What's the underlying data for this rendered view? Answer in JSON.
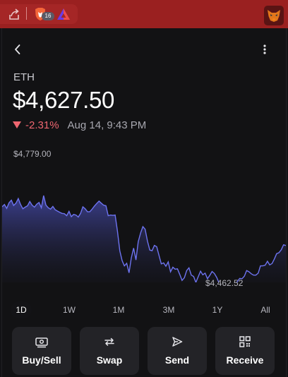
{
  "browser": {
    "extension_badge": "16"
  },
  "asset": {
    "symbol": "ETH",
    "price": "$4,627.50",
    "change_pct": "-2.31%",
    "timestamp": "Aug 14, 9:43 PM"
  },
  "chart_data": {
    "type": "area",
    "high_label": "$4,779.00",
    "low_label": "$4,462.52",
    "ylim": [
      4462.52,
      4779.0
    ],
    "line_color": "#6d73f0",
    "series": [
      {
        "values": [
          4745,
          4752,
          4740,
          4757,
          4765,
          4749,
          4756,
          4770,
          4752,
          4739,
          4744,
          4748,
          4761,
          4750,
          4744,
          4753,
          4758,
          4742,
          4779,
          4750,
          4742,
          4738,
          4746,
          4736,
          4732,
          4728,
          4725,
          4724,
          4718,
          4731,
          4715,
          4722,
          4720,
          4714,
          4725,
          4745,
          4739,
          4730,
          4730,
          4738,
          4747,
          4755,
          4762,
          4756,
          4750,
          4748,
          4718,
          4720,
          4719,
          4720,
          4671,
          4612,
          4582,
          4566,
          4574,
          4545,
          4590,
          4620,
          4584,
          4639,
          4665,
          4685,
          4677,
          4641,
          4614,
          4612,
          4628,
          4624,
          4598,
          4572,
          4575,
          4565,
          4578,
          4548,
          4562,
          4556,
          4557,
          4540,
          4522,
          4530,
          4552,
          4560,
          4538,
          4534,
          4516,
          4533,
          4550,
          4539,
          4544,
          4527,
          4537,
          4549,
          4543,
          4531,
          4515,
          4491,
          4476,
          4462.52,
          4471,
          4483,
          4490,
          4507,
          4519,
          4528,
          4527,
          4535,
          4552,
          4548,
          4542,
          4538,
          4538,
          4544,
          4566,
          4566,
          4568,
          4580,
          4569,
          4573,
          4587,
          4603,
          4606,
          4615,
          4630,
          4627.5
        ]
      }
    ]
  },
  "ranges": [
    "1D",
    "1W",
    "1M",
    "3M",
    "1Y",
    "All"
  ],
  "active_range": "1D",
  "actions": [
    {
      "label": "Buy/Sell",
      "icon": "banknote-icon"
    },
    {
      "label": "Swap",
      "icon": "swap-arrows-icon"
    },
    {
      "label": "Send",
      "icon": "send-icon"
    },
    {
      "label": "Receive",
      "icon": "qr-code-icon"
    }
  ],
  "colors": {
    "accent_chart": "#6d73f0",
    "negative": "#ee6670",
    "browser_bar": "#9a2020"
  }
}
